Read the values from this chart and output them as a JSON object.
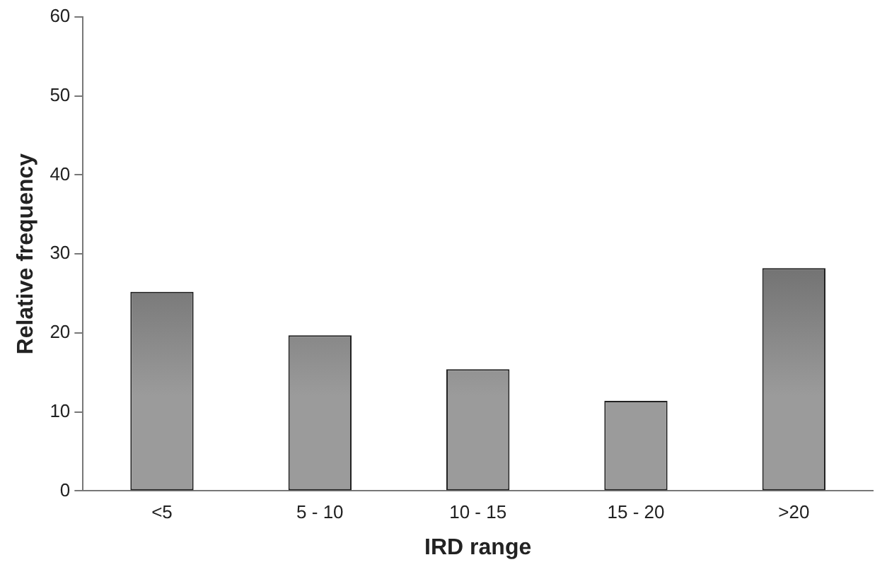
{
  "chart_data": {
    "type": "bar",
    "xlabel": "IRD range",
    "ylabel": "Relative frequency",
    "categories": [
      "<5",
      "5 - 10",
      "10 - 15",
      "15 - 20",
      ">20"
    ],
    "values": [
      25.2,
      19.7,
      15.4,
      11.4,
      28.2
    ],
    "color": "#4a4a4a",
    "ylim": [
      0,
      60
    ],
    "yticks": [
      0,
      10,
      20,
      30,
      40,
      50,
      60
    ],
    "grid": false,
    "legend": false
  }
}
